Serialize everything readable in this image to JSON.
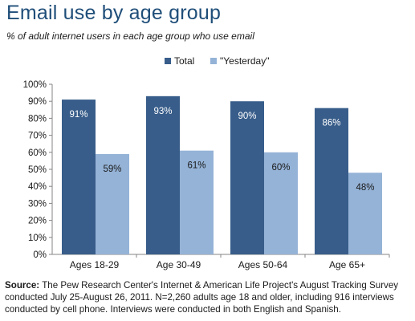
{
  "title": "Email use by age group",
  "subtitle": "% of adult internet users in each age group who use email",
  "colors": {
    "total": "#385d8a",
    "yesterday": "#95b3d7",
    "title": "#1f4e79"
  },
  "chart_data": {
    "type": "bar",
    "categories": [
      "Ages 18-29",
      "Age 30-49",
      "Ages 50-64",
      "Age 65+"
    ],
    "series": [
      {
        "name": "Total",
        "values": [
          91,
          93,
          90,
          86
        ],
        "labels": [
          "91%",
          "93%",
          "90%",
          "86%"
        ]
      },
      {
        "name": "\"Yesterday\"",
        "values": [
          59,
          61,
          60,
          48
        ],
        "labels": [
          "59%",
          "61%",
          "60%",
          "48%"
        ]
      }
    ],
    "ylim": [
      0,
      100
    ],
    "yticks": [
      0,
      10,
      20,
      30,
      40,
      50,
      60,
      70,
      80,
      90,
      100
    ],
    "ytick_labels": [
      "0%",
      "10%",
      "20%",
      "30%",
      "40%",
      "50%",
      "60%",
      "70%",
      "80%",
      "90%",
      "100%"
    ],
    "grid": false,
    "legend_position": "top-center"
  },
  "source": {
    "label": "Source:",
    "text": "The Pew Research Center's Internet & American Life Project's August Tracking Survey conducted July 25-August 26, 2011. N=2,260 adults age 18 and older, including 916 interviews conducted by cell phone. Interviews were conducted in both English and Spanish."
  }
}
